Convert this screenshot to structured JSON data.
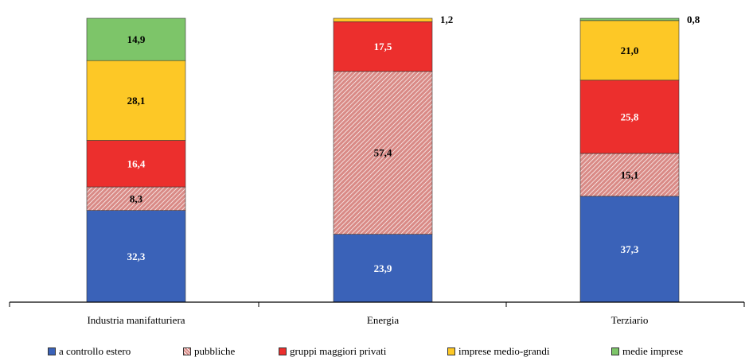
{
  "chart_data": {
    "type": "bar",
    "stacked": true,
    "normalized_percent": true,
    "categories": [
      "Industria manifatturiera",
      "Energia",
      "Terziario"
    ],
    "series": [
      {
        "name": "a controllo estero",
        "color": "#3a62b8",
        "pattern": "solid",
        "label_color": "#ffffff",
        "values": [
          32.3,
          23.9,
          37.3
        ],
        "labels": [
          "32,3",
          "23,9",
          "37,3"
        ]
      },
      {
        "name": "pubbliche",
        "color": "#d98a86",
        "pattern": "hatched",
        "label_color": "#000000",
        "values": [
          8.3,
          57.4,
          15.1
        ],
        "labels": [
          "8,3",
          "57,4",
          "15,1"
        ]
      },
      {
        "name": "gruppi maggiori privati",
        "color": "#ec2f2d",
        "pattern": "solid",
        "label_color": "#ffffff",
        "values": [
          16.4,
          17.5,
          25.8
        ],
        "labels": [
          "16,4",
          "17,5",
          "25,8"
        ]
      },
      {
        "name": "imprese medio-grandi",
        "color": "#fdc826",
        "pattern": "solid",
        "label_color": "#000000",
        "values": [
          28.1,
          1.2,
          21.0
        ],
        "labels": [
          "28,1",
          "1,2",
          "21,0"
        ]
      },
      {
        "name": "medie imprese",
        "color": "#7dc569",
        "pattern": "solid",
        "label_color": "#000000",
        "values": [
          14.9,
          0.0,
          0.8
        ],
        "labels": [
          "14,9",
          "",
          "0,8"
        ]
      }
    ],
    "ylim": [
      0,
      100
    ],
    "grid": false,
    "legend_position": "bottom"
  }
}
